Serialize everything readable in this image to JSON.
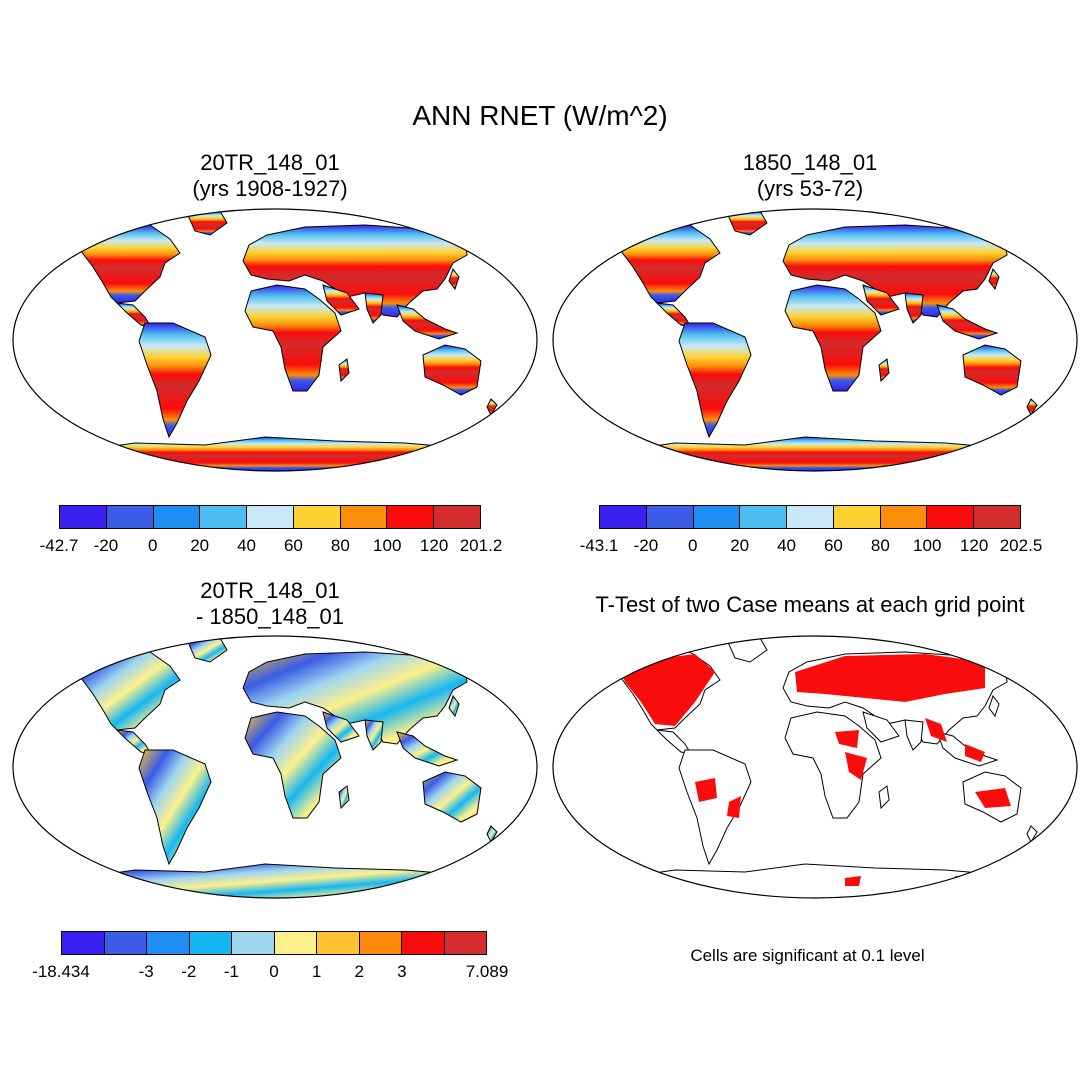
{
  "title": "ANN RNET (W/m^2)",
  "panels": [
    {
      "id": "p1",
      "title_line1": "20TR_148_01",
      "title_line2": "(yrs 1908-1927)",
      "colorbar": {
        "colors": [
          "#3b1ff0",
          "#3a5ce6",
          "#1f8ef2",
          "#4bbdf0",
          "#c9e8f5",
          "#fdd232",
          "#fb8e0a",
          "#fb0c0c",
          "#d22c2c"
        ],
        "labels": [
          "-42.7",
          "-20",
          "0",
          "20",
          "40",
          "60",
          "80",
          "100",
          "120",
          "201.2"
        ]
      }
    },
    {
      "id": "p2",
      "title_line1": "1850_148_01",
      "title_line2": "(yrs 53-72)",
      "colorbar": {
        "colors": [
          "#3b1ff0",
          "#3a5ce6",
          "#1f8ef2",
          "#4bbdf0",
          "#c9e8f5",
          "#fdd232",
          "#fb8e0a",
          "#fb0c0c",
          "#d22c2c"
        ],
        "labels": [
          "-43.1",
          "-20",
          "0",
          "20",
          "40",
          "60",
          "80",
          "100",
          "120",
          "202.5"
        ]
      }
    },
    {
      "id": "p3",
      "title_line1": "20TR_148_01",
      "title_line2": "- 1850_148_01",
      "colorbar": {
        "colors": [
          "#3b1ff0",
          "#3a5ce6",
          "#1f8ef2",
          "#16b6f2",
          "#9ed6f0",
          "#fdf08c",
          "#fdc230",
          "#fb8a0a",
          "#fb0c0c",
          "#d22c2c"
        ],
        "labels": [
          "-18.434",
          "",
          "-3",
          "-2",
          "-1",
          "0",
          "1",
          "2",
          "3",
          "",
          "7.089"
        ]
      }
    },
    {
      "id": "p4",
      "title_line1": "T-Test of two Case means at each grid point",
      "note": "Cells are significant at 0.1 level"
    }
  ]
}
